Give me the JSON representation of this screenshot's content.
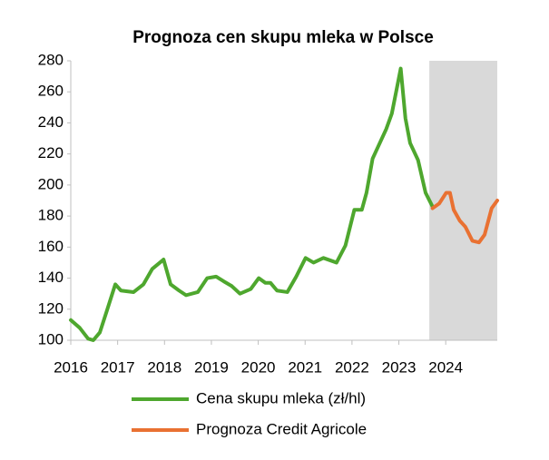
{
  "chart_data": {
    "type": "line",
    "title": "Prognoza cen skupu mleka w Polsce",
    "xlim": [
      2016,
      2025.1
    ],
    "xticks": [
      2016,
      2017,
      2018,
      2019,
      2020,
      2021,
      2022,
      2023,
      2024
    ],
    "ylim": [
      100,
      280
    ],
    "yticks": [
      100,
      120,
      140,
      160,
      180,
      200,
      220,
      240,
      260,
      280
    ],
    "grid": false,
    "legend": "bottom",
    "shaded_region": {
      "x": [
        2023.65,
        2025.1
      ],
      "color": "#d9d9d9"
    },
    "series": [
      {
        "name": "Cena skupu mleka (zł/hl)",
        "color": "#4ea72e",
        "x": [
          2016.0,
          2016.19,
          2016.37,
          2016.48,
          2016.62,
          2016.77,
          2016.95,
          2017.07,
          2017.34,
          2017.55,
          2017.74,
          2017.98,
          2018.13,
          2018.31,
          2018.46,
          2018.71,
          2018.91,
          2019.1,
          2019.26,
          2019.43,
          2019.61,
          2019.84,
          2020.01,
          2020.15,
          2020.26,
          2020.4,
          2020.62,
          2020.81,
          2021.01,
          2021.18,
          2021.39,
          2021.67,
          2021.86,
          2022.05,
          2022.21,
          2022.31,
          2022.44,
          2022.73,
          2022.85,
          2023.04,
          2023.14,
          2023.24,
          2023.41,
          2023.57,
          2023.72
        ],
        "values": [
          113,
          108,
          101,
          100,
          105,
          119,
          136,
          132,
          131,
          136,
          146,
          152,
          136,
          132,
          129,
          131,
          140,
          141,
          138,
          135,
          130,
          133,
          140,
          137,
          137,
          132,
          131,
          141,
          153,
          150,
          153,
          150,
          161,
          184,
          184,
          195,
          217,
          236,
          246,
          275,
          243,
          227,
          216,
          195,
          186
        ]
      },
      {
        "name": "Prognoza Credit Agricole",
        "color": "#e97132",
        "x": [
          2023.72,
          2023.86,
          2024.01,
          2024.09,
          2024.17,
          2024.3,
          2024.42,
          2024.57,
          2024.71,
          2024.83,
          2024.98,
          2025.1
        ],
        "values": [
          185,
          188,
          195,
          195,
          184,
          177,
          173,
          164,
          163,
          168,
          185,
          190
        ]
      }
    ]
  }
}
